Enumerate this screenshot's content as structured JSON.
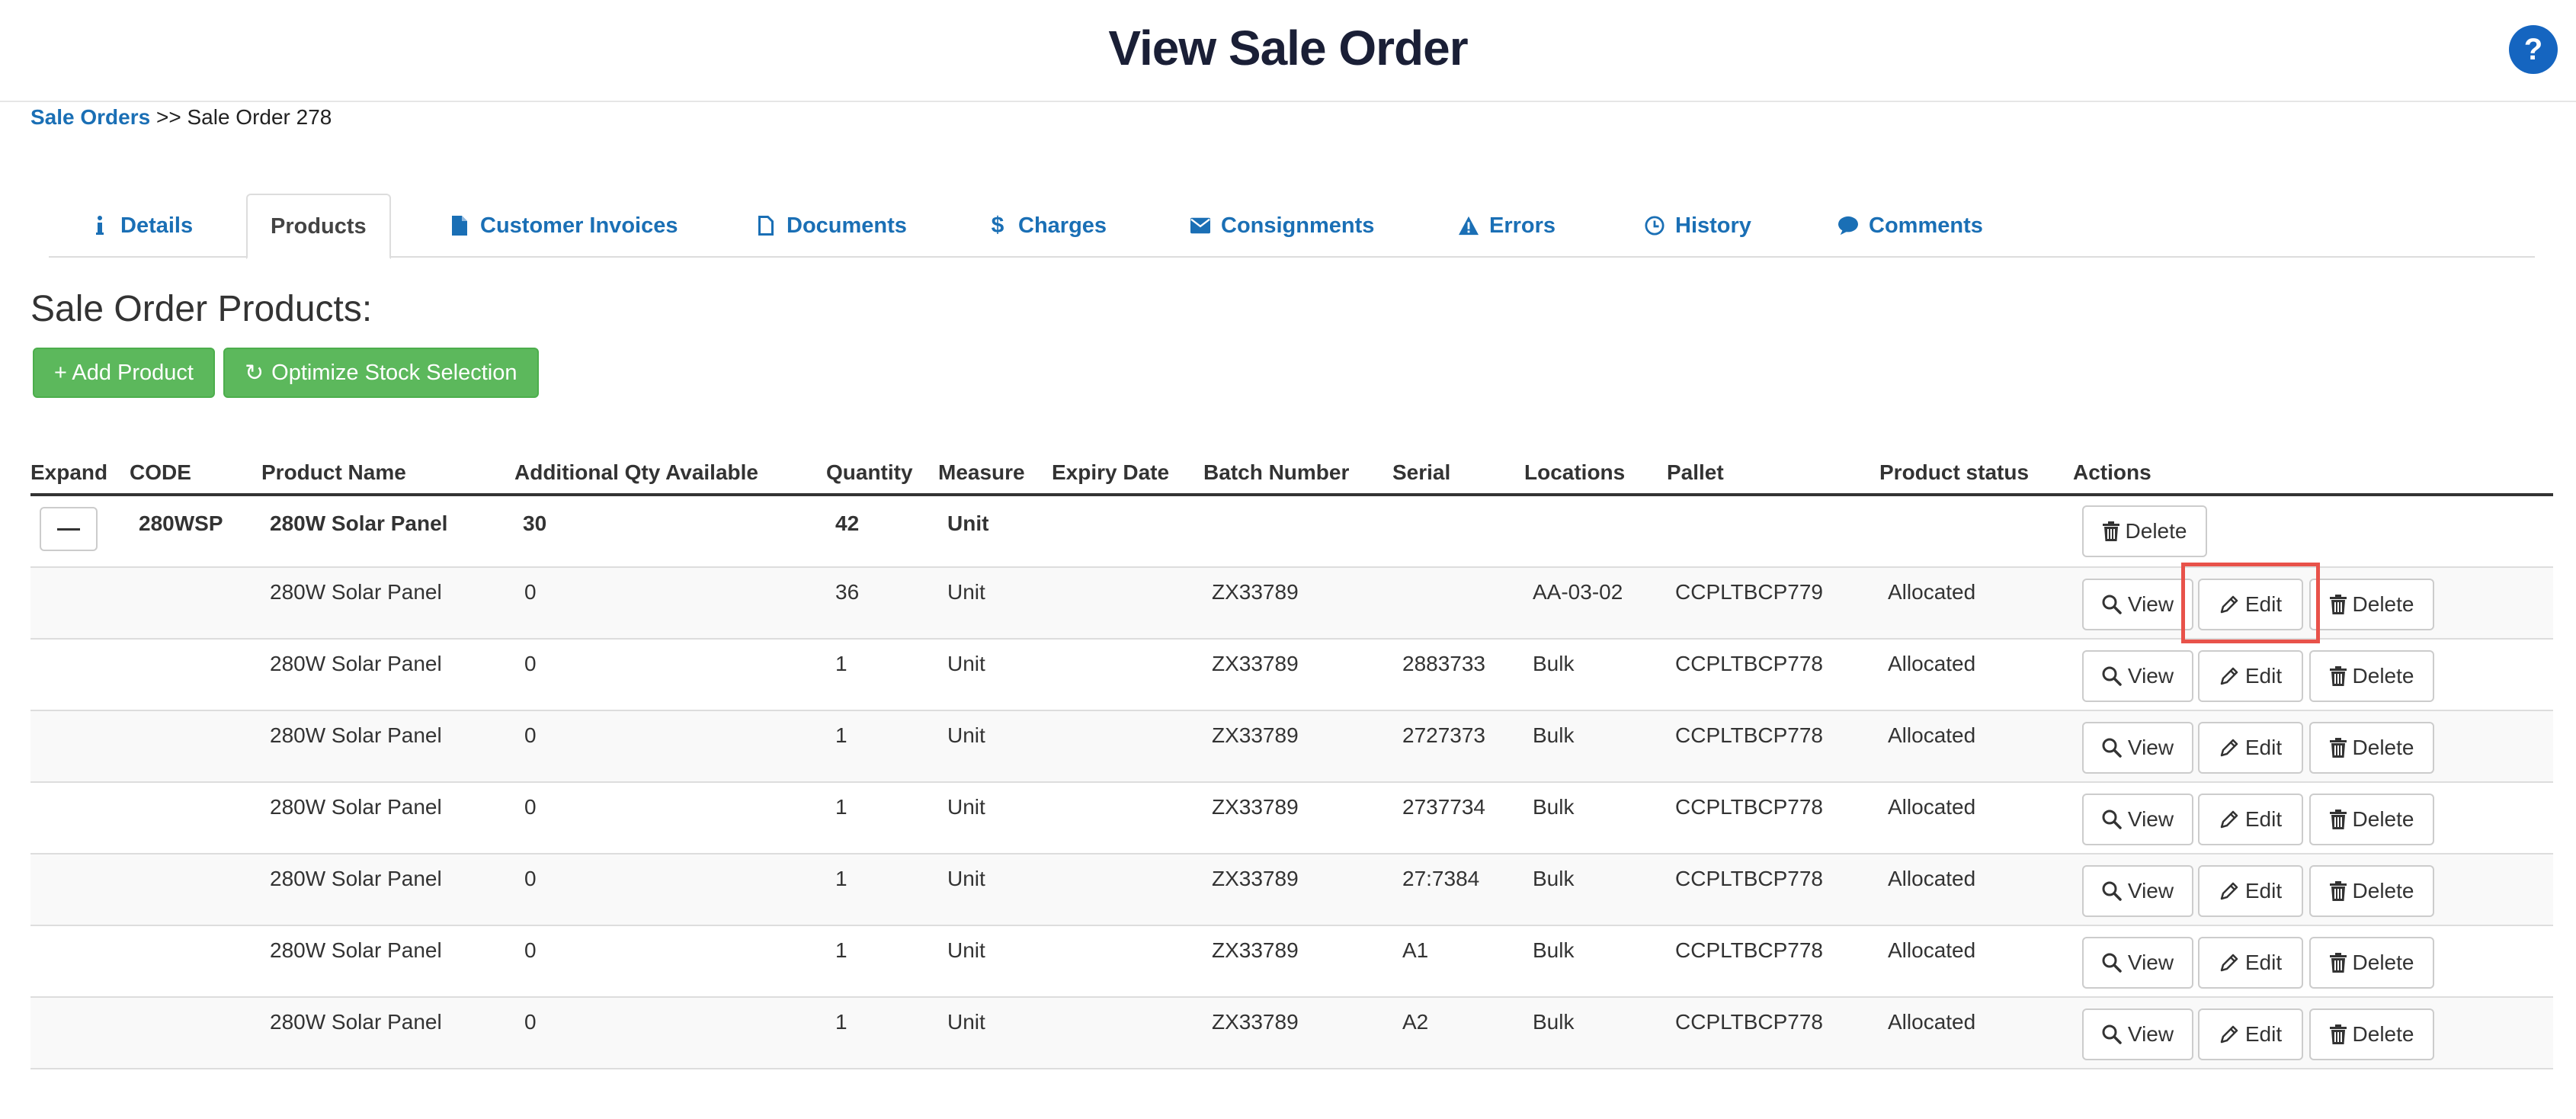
{
  "header": {
    "title": "View Sale Order",
    "help_label": "?"
  },
  "breadcrumb": {
    "root": "Sale Orders",
    "separator": ">>",
    "current": "Sale Order 278"
  },
  "tabs": [
    {
      "label": "Details",
      "icon": "info-icon"
    },
    {
      "label": "Products",
      "icon": ""
    },
    {
      "label": "Customer Invoices",
      "icon": "file-icon"
    },
    {
      "label": "Documents",
      "icon": "file-outline-icon"
    },
    {
      "label": "Charges",
      "icon": "dollar-icon"
    },
    {
      "label": "Consignments",
      "icon": "envelope-icon"
    },
    {
      "label": "Errors",
      "icon": "warning-icon"
    },
    {
      "label": "History",
      "icon": "clock-icon"
    },
    {
      "label": "Comments",
      "icon": "comment-icon"
    }
  ],
  "section_title": "Sale Order Products:",
  "actions": {
    "add_product": "+ Add Product",
    "optimize": "Optimize Stock Selection"
  },
  "table": {
    "headers": [
      "Expand",
      "CODE",
      "Product Name",
      "Additional Qty Available",
      "Quantity",
      "Measure",
      "Expiry Date",
      "Batch Number",
      "Serial",
      "Locations",
      "Pallet",
      "Product status",
      "Actions"
    ],
    "parent": {
      "code": "280WSP",
      "name": "280W Solar Panel",
      "additional_qty": "30",
      "quantity": "42",
      "measure": "Unit",
      "delete": "Delete"
    },
    "rows": [
      {
        "name": "280W Solar Panel",
        "additional_qty": "0",
        "quantity": "36",
        "measure": "Unit",
        "batch": "ZX33789",
        "serial": "",
        "location": "AA-03-02",
        "pallet": "CCPLTBCP779",
        "status": "Allocated"
      },
      {
        "name": "280W Solar Panel",
        "additional_qty": "0",
        "quantity": "1",
        "measure": "Unit",
        "batch": "ZX33789",
        "serial": "2883733",
        "location": "Bulk",
        "pallet": "CCPLTBCP778",
        "status": "Allocated"
      },
      {
        "name": "280W Solar Panel",
        "additional_qty": "0",
        "quantity": "1",
        "measure": "Unit",
        "batch": "ZX33789",
        "serial": "2727373",
        "location": "Bulk",
        "pallet": "CCPLTBCP778",
        "status": "Allocated"
      },
      {
        "name": "280W Solar Panel",
        "additional_qty": "0",
        "quantity": "1",
        "measure": "Unit",
        "batch": "ZX33789",
        "serial": "2737734",
        "location": "Bulk",
        "pallet": "CCPLTBCP778",
        "status": "Allocated"
      },
      {
        "name": "280W Solar Panel",
        "additional_qty": "0",
        "quantity": "1",
        "measure": "Unit",
        "batch": "ZX33789",
        "serial": "27:7384",
        "location": "Bulk",
        "pallet": "CCPLTBCP778",
        "status": "Allocated"
      },
      {
        "name": "280W Solar Panel",
        "additional_qty": "0",
        "quantity": "1",
        "measure": "Unit",
        "batch": "ZX33789",
        "serial": "A1",
        "location": "Bulk",
        "pallet": "CCPLTBCP778",
        "status": "Allocated"
      },
      {
        "name": "280W Solar Panel",
        "additional_qty": "0",
        "quantity": "1",
        "measure": "Unit",
        "batch": "ZX33789",
        "serial": "A2",
        "location": "Bulk",
        "pallet": "CCPLTBCP778",
        "status": "Allocated"
      }
    ],
    "row_actions": {
      "view": "View",
      "edit": "Edit",
      "delete": "Delete"
    }
  },
  "colors": {
    "link": "#1a6fb5",
    "green": "#5cb85c",
    "highlight": "#e8524a",
    "help": "#1565c0"
  }
}
